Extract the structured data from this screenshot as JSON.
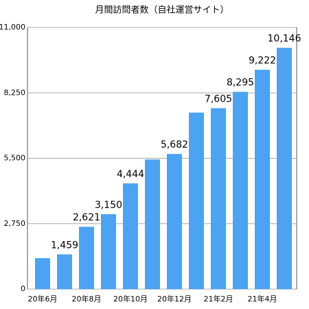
{
  "chart_data": {
    "type": "bar",
    "title": "月間訪問者数（自社運営サイト）",
    "categories": [
      "20年6月",
      null,
      "20年8月",
      null,
      "20年10月",
      null,
      "20年12月",
      null,
      "21年2月",
      null,
      "21年4月",
      null
    ],
    "values": [
      1300,
      1459,
      2621,
      3150,
      4444,
      5450,
      5682,
      7420,
      7605,
      8295,
      9222,
      10146
    ],
    "value_labels": [
      null,
      "1,459",
      "2,621",
      "3,150",
      "4,444",
      null,
      "5,682",
      null,
      "7,605",
      "8,295",
      "9,222",
      "10,146"
    ],
    "color": "#4ba3f2",
    "ylim": [
      0,
      11000
    ],
    "yticks": [
      0,
      {
        "value": 2750,
        "label": "2,750"
      },
      {
        "value": 5500,
        "label": "5,500"
      },
      {
        "value": 8250,
        "label": "8,250"
      },
      {
        "value": 11000,
        "label": "11,000"
      }
    ],
    "grid": true
  }
}
